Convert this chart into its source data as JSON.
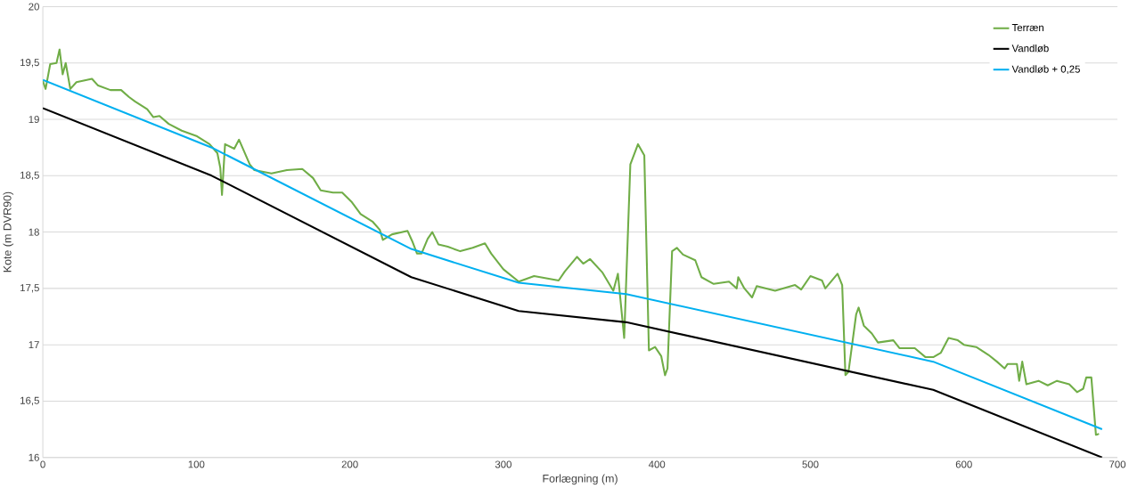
{
  "chart_data": {
    "type": "line",
    "xlabel": "Forlægning (m)",
    "ylabel": "Kote (m DVR90)",
    "xlim": [
      0,
      700
    ],
    "xticks": [
      0,
      100,
      200,
      300,
      400,
      500,
      600,
      700
    ],
    "ylim": [
      16,
      20
    ],
    "yticks": [
      16,
      {
        "value": 16.5,
        "label": "16,5"
      },
      17,
      {
        "value": 17.5,
        "label": "17,5"
      },
      18,
      {
        "value": 18.5,
        "label": "18,5"
      },
      19,
      {
        "value": 19.5,
        "label": "19,5"
      },
      20
    ],
    "grid": "y",
    "legend": "top right",
    "marker": "none",
    "line_style": "solid",
    "series": [
      {
        "name": "Terræn",
        "color": "#70ad47",
        "x": [
          0,
          1.8,
          4.8,
          8.9,
          10.9,
          12.9,
          14.9,
          17.9,
          21.9,
          32,
          36,
          44,
          51,
          56,
          60,
          68,
          72,
          76,
          82,
          90.5,
          100.5,
          108.6,
          113.7,
          115.6,
          116.7,
          118.7,
          124.7,
          127.8,
          134.8,
          137.8,
          148.9,
          159,
          169,
          176,
          181,
          189,
          195,
          201,
          207,
          215,
          219.5,
          221.5,
          227.5,
          237.6,
          240.6,
          243.7,
          246.7,
          250.7,
          253.7,
          257.7,
          263.8,
          271.9,
          280,
          288,
          292,
          300,
          310,
          320,
          328,
          336,
          340,
          348,
          352,
          356.5,
          364.6,
          371.6,
          374.6,
          378.7,
          382.7,
          387.7,
          391.8,
          394.8,
          398.8,
          402.8,
          405.3,
          406.9,
          409.9,
          413,
          417,
          425,
          429,
          437,
          447,
          452,
          453,
          457,
          462,
          465,
          477,
          490,
          494,
          500,
          507.6,
          509.7,
          517.7,
          520.7,
          522.8,
          524.8,
          529.8,
          531.4,
          534.8,
          540,
          544,
          554,
          558,
          568,
          575,
          580,
          585,
          590,
          596,
          600,
          608,
          616,
          621.5,
          626.5,
          628.5,
          634.5,
          636,
          638,
          640.7,
          648.6,
          654.6,
          660.6,
          668.6,
          673.7,
          677.7,
          679.7,
          683,
          686,
          688
        ],
        "values": [
          19.34,
          19.27,
          19.49,
          19.5,
          19.62,
          19.4,
          19.5,
          19.27,
          19.33,
          19.36,
          19.3,
          19.26,
          19.26,
          19.2,
          19.16,
          19.09,
          19.02,
          19.03,
          18.96,
          18.9,
          18.85,
          18.78,
          18.7,
          18.57,
          18.33,
          18.78,
          18.74,
          18.82,
          18.6,
          18.55,
          18.52,
          18.55,
          18.56,
          18.48,
          18.37,
          18.35,
          18.35,
          18.27,
          18.16,
          18.09,
          18.02,
          17.93,
          17.98,
          18.01,
          17.92,
          17.81,
          17.81,
          17.94,
          18.0,
          17.89,
          17.87,
          17.83,
          17.86,
          17.9,
          17.81,
          17.67,
          17.56,
          17.61,
          17.59,
          17.57,
          17.65,
          17.78,
          17.72,
          17.76,
          17.64,
          17.48,
          17.63,
          17.06,
          18.6,
          18.78,
          18.68,
          16.95,
          16.98,
          16.9,
          16.73,
          16.79,
          17.83,
          17.86,
          17.8,
          17.75,
          17.6,
          17.54,
          17.56,
          17.5,
          17.6,
          17.5,
          17.42,
          17.52,
          17.48,
          17.53,
          17.49,
          17.61,
          17.57,
          17.5,
          17.63,
          17.53,
          16.73,
          16.76,
          17.27,
          17.33,
          17.17,
          17.1,
          17.02,
          17.04,
          16.97,
          16.97,
          16.89,
          16.89,
          16.93,
          17.06,
          17.04,
          17.0,
          16.98,
          16.91,
          16.85,
          16.79,
          16.83,
          16.83,
          16.68,
          16.85,
          16.65,
          16.68,
          16.64,
          16.68,
          16.65,
          16.58,
          16.61,
          16.71,
          16.71,
          16.2,
          16.21
        ]
      },
      {
        "name": "Vandløb",
        "color": "#000000",
        "x": [
          0,
          110,
          240,
          310,
          380,
          580,
          690
        ],
        "values": [
          19.1,
          18.5,
          17.6,
          17.3,
          17.2,
          16.6,
          16.0
        ]
      },
      {
        "name": "Vandløb + 0,25",
        "color": "#00b0f0",
        "x": [
          0,
          110,
          240,
          310,
          380,
          580,
          690
        ],
        "values": [
          19.35,
          18.75,
          17.85,
          17.55,
          17.45,
          16.85,
          16.25
        ]
      }
    ]
  }
}
